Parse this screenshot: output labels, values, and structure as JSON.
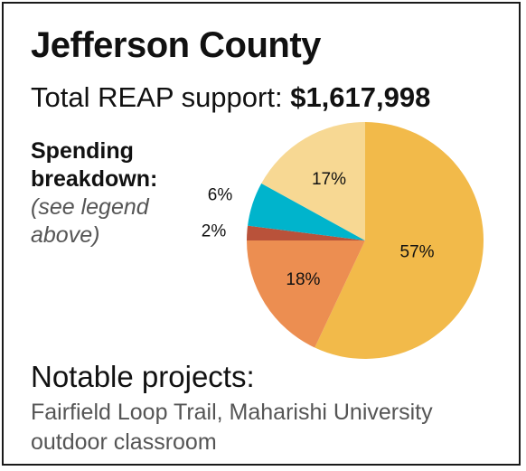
{
  "header": {
    "title": "Jefferson County",
    "support_label": "Total REAP support:",
    "support_amount": "$1,617,998"
  },
  "breakdown": {
    "heading": "Spending breakdown:",
    "note": "(see legend above)"
  },
  "chart_data": {
    "type": "pie",
    "title": "",
    "slices": [
      {
        "label": "57%",
        "value": 57,
        "color": "#F2BA4A"
      },
      {
        "label": "18%",
        "value": 18,
        "color": "#EC8E51"
      },
      {
        "label": "2%",
        "value": 2,
        "color": "#B9523A"
      },
      {
        "label": "6%",
        "value": 6,
        "color": "#00B4CC"
      },
      {
        "label": "17%",
        "value": 17,
        "color": "#F7D893"
      }
    ]
  },
  "projects": {
    "heading": "Notable projects:",
    "text": "Fairfield Loop Trail, Maharishi University outdoor classroom"
  }
}
